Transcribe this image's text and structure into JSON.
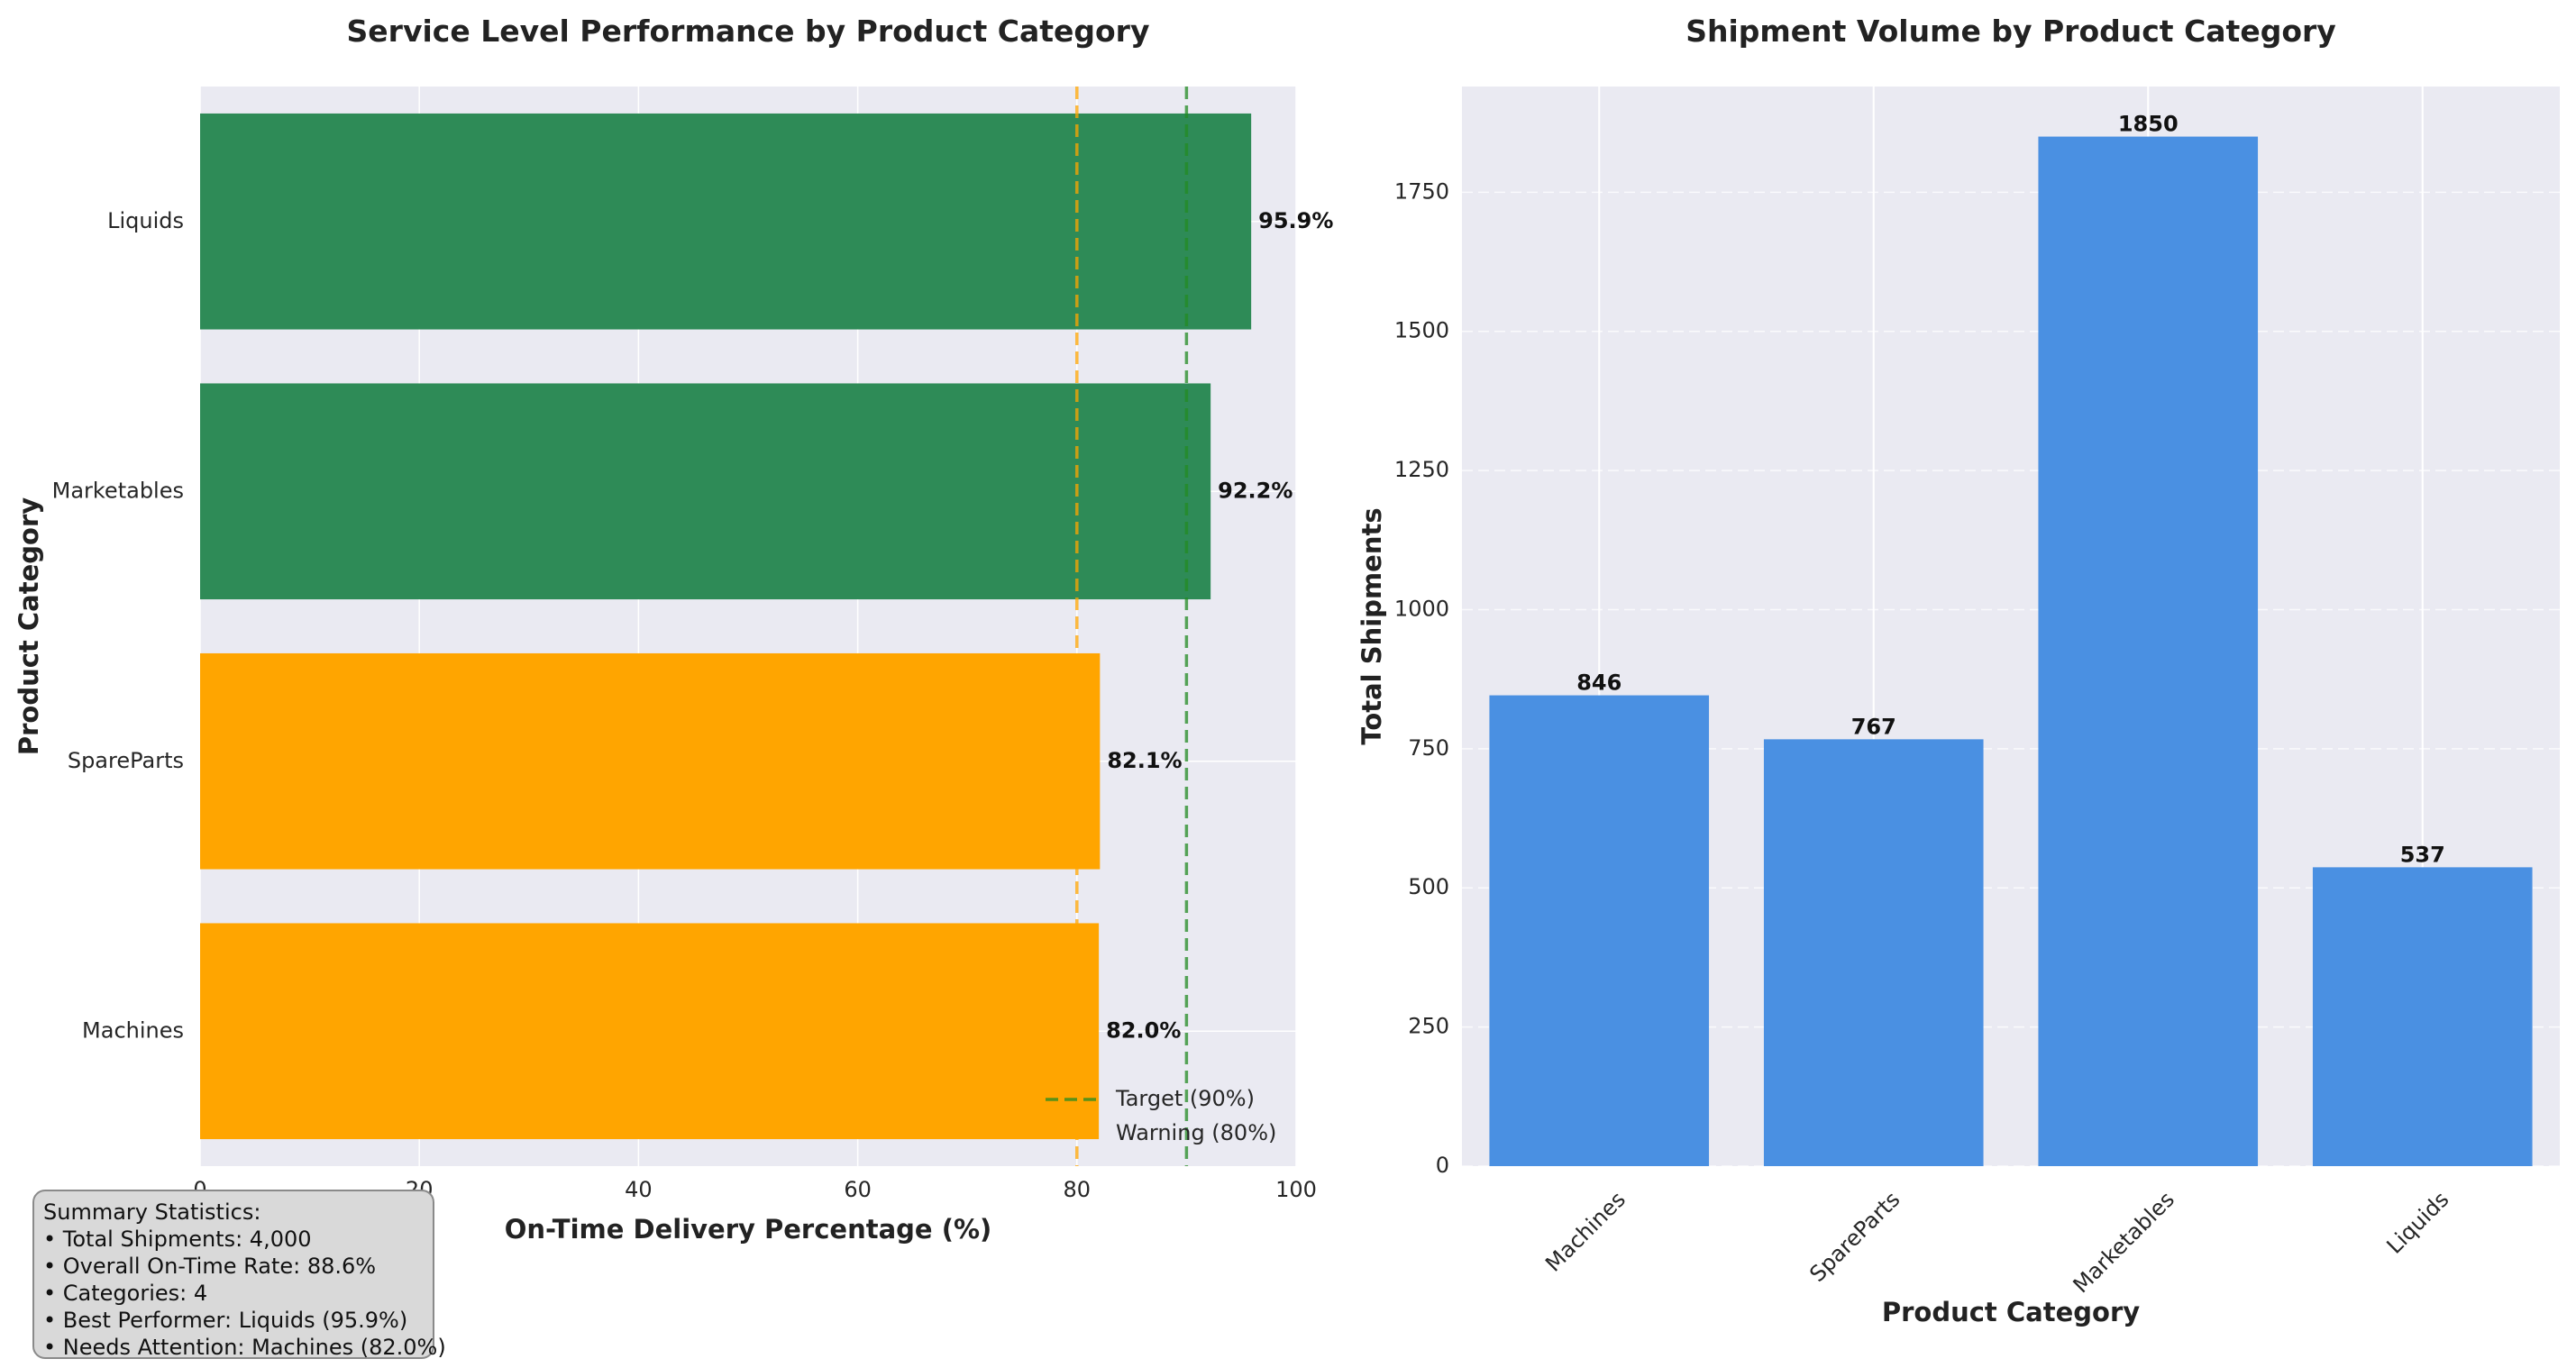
{
  "chart_data": [
    {
      "type": "bar",
      "orientation": "horizontal",
      "title": "Service Level Performance by Product Category",
      "xlabel": "On-Time Delivery Percentage (%)",
      "ylabel": "Product Category",
      "categories": [
        "Machines",
        "SpareParts",
        "Marketables",
        "Liquids"
      ],
      "values": [
        82.0,
        82.1,
        92.2,
        95.9
      ],
      "value_labels": [
        "82.0%",
        "82.1%",
        "92.2%",
        "95.9%"
      ],
      "bar_colors": [
        "#ffa500",
        "#ffa500",
        "#2e8b57",
        "#2e8b57"
      ],
      "xlim": [
        0,
        100
      ],
      "xticks": [
        0,
        20,
        40,
        60,
        80,
        100
      ],
      "grid": true,
      "reference_lines": [
        {
          "label": "Target (90%)",
          "value": 90,
          "color": "#228b22",
          "style": "dashed"
        },
        {
          "label": "Warning (80%)",
          "value": 80,
          "color": "#ffa500",
          "style": "dashed"
        }
      ],
      "legend_position": "lower-right"
    },
    {
      "type": "bar",
      "title": "Shipment Volume by Product Category",
      "xlabel": "Product Category",
      "ylabel": "Total Shipments",
      "categories": [
        "Machines",
        "SpareParts",
        "Marketables",
        "Liquids"
      ],
      "values": [
        846,
        767,
        1850,
        537
      ],
      "value_labels": [
        "846",
        "767",
        "1850",
        "537"
      ],
      "bar_color": "#4a90e2",
      "ylim": [
        0,
        1940
      ],
      "yticks": [
        0,
        250,
        500,
        750,
        1000,
        1250,
        1500,
        1750
      ],
      "grid": true
    }
  ],
  "summary": {
    "heading": "Summary Statistics:",
    "lines": [
      "• Total Shipments: 4,000",
      "• Overall On-Time Rate: 88.6%",
      "• Categories: 4",
      "• Best Performer: Liquids (95.9%)",
      "• Needs Attention: Machines (82.0%)"
    ]
  },
  "colors": {
    "plot_background": "#eaeaf2",
    "grid": "#ffffff"
  }
}
